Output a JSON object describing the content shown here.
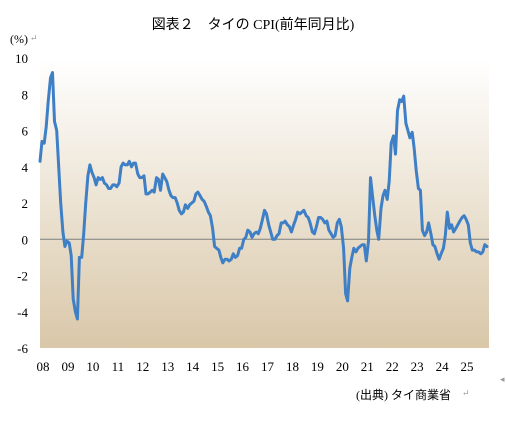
{
  "title": "図表２　タイの CPI(前年同月比)",
  "unit_label": "(%)",
  "source": "(出典) タイ商業省",
  "chart_data": {
    "type": "line",
    "title": "図表２　タイの CPI(前年同月比)",
    "ylabel": "(%)",
    "xlabel": "",
    "ylim": [
      -6,
      10
    ],
    "yticks": [
      10,
      8,
      6,
      4,
      2,
      0,
      -2,
      -4,
      -6
    ],
    "xlim": [
      2008,
      2026
    ],
    "xtick_labels": [
      "08",
      "09",
      "10",
      "11",
      "12",
      "13",
      "14",
      "15",
      "16",
      "17",
      "18",
      "19",
      "20",
      "21",
      "22",
      "23",
      "24",
      "25"
    ],
    "grid": false,
    "plot_background": "gradient-white-to-tan",
    "series": [
      {
        "name": "",
        "color": "#3f7fc6",
        "points": [
          [
            2008.0,
            4.3
          ],
          [
            2008.08,
            5.4
          ],
          [
            2008.17,
            5.3
          ],
          [
            2008.25,
            6.2
          ],
          [
            2008.33,
            7.6
          ],
          [
            2008.42,
            8.9
          ],
          [
            2008.5,
            9.2
          ],
          [
            2008.58,
            6.5
          ],
          [
            2008.67,
            6.0
          ],
          [
            2008.75,
            4.0
          ],
          [
            2008.83,
            2.0
          ],
          [
            2008.92,
            0.4
          ],
          [
            2009.0,
            -0.4
          ],
          [
            2009.08,
            -0.1
          ],
          [
            2009.17,
            -0.2
          ],
          [
            2009.25,
            -0.9
          ],
          [
            2009.33,
            -3.3
          ],
          [
            2009.42,
            -4.0
          ],
          [
            2009.5,
            -4.4
          ],
          [
            2009.58,
            -1.0
          ],
          [
            2009.67,
            -1.0
          ],
          [
            2009.75,
            0.3
          ],
          [
            2009.83,
            1.9
          ],
          [
            2009.92,
            3.5
          ],
          [
            2010.0,
            4.1
          ],
          [
            2010.08,
            3.7
          ],
          [
            2010.17,
            3.4
          ],
          [
            2010.25,
            3.0
          ],
          [
            2010.33,
            3.4
          ],
          [
            2010.42,
            3.3
          ],
          [
            2010.5,
            3.4
          ],
          [
            2010.58,
            3.1
          ],
          [
            2010.67,
            3.0
          ],
          [
            2010.75,
            2.8
          ],
          [
            2010.83,
            2.8
          ],
          [
            2010.92,
            3.0
          ],
          [
            2011.0,
            3.0
          ],
          [
            2011.08,
            2.9
          ],
          [
            2011.17,
            3.1
          ],
          [
            2011.25,
            4.0
          ],
          [
            2011.33,
            4.2
          ],
          [
            2011.42,
            4.1
          ],
          [
            2011.5,
            4.1
          ],
          [
            2011.58,
            4.3
          ],
          [
            2011.67,
            4.0
          ],
          [
            2011.75,
            4.2
          ],
          [
            2011.83,
            4.2
          ],
          [
            2011.92,
            3.6
          ],
          [
            2012.0,
            3.4
          ],
          [
            2012.08,
            3.4
          ],
          [
            2012.17,
            3.5
          ],
          [
            2012.25,
            2.5
          ],
          [
            2012.33,
            2.5
          ],
          [
            2012.42,
            2.6
          ],
          [
            2012.5,
            2.7
          ],
          [
            2012.58,
            2.6
          ],
          [
            2012.67,
            3.4
          ],
          [
            2012.75,
            3.3
          ],
          [
            2012.83,
            2.7
          ],
          [
            2012.92,
            3.6
          ],
          [
            2013.0,
            3.4
          ],
          [
            2013.08,
            3.2
          ],
          [
            2013.17,
            2.7
          ],
          [
            2013.25,
            2.4
          ],
          [
            2013.33,
            2.3
          ],
          [
            2013.42,
            2.3
          ],
          [
            2013.5,
            2.0
          ],
          [
            2013.58,
            1.6
          ],
          [
            2013.67,
            1.4
          ],
          [
            2013.75,
            1.5
          ],
          [
            2013.83,
            1.9
          ],
          [
            2013.92,
            1.7
          ],
          [
            2014.0,
            1.9
          ],
          [
            2014.08,
            2.0
          ],
          [
            2014.17,
            2.1
          ],
          [
            2014.25,
            2.5
          ],
          [
            2014.33,
            2.6
          ],
          [
            2014.42,
            2.4
          ],
          [
            2014.5,
            2.2
          ],
          [
            2014.58,
            2.1
          ],
          [
            2014.67,
            1.8
          ],
          [
            2014.75,
            1.5
          ],
          [
            2014.83,
            1.3
          ],
          [
            2014.92,
            0.6
          ],
          [
            2015.0,
            -0.4
          ],
          [
            2015.08,
            -0.5
          ],
          [
            2015.17,
            -0.6
          ],
          [
            2015.25,
            -1.0
          ],
          [
            2015.33,
            -1.3
          ],
          [
            2015.42,
            -1.1
          ],
          [
            2015.5,
            -1.1
          ],
          [
            2015.58,
            -1.2
          ],
          [
            2015.67,
            -1.1
          ],
          [
            2015.75,
            -0.8
          ],
          [
            2015.83,
            -1.0
          ],
          [
            2015.92,
            -0.9
          ],
          [
            2016.0,
            -0.5
          ],
          [
            2016.08,
            -0.5
          ],
          [
            2016.17,
            0.0
          ],
          [
            2016.25,
            0.1
          ],
          [
            2016.33,
            0.5
          ],
          [
            2016.42,
            0.4
          ],
          [
            2016.5,
            0.1
          ],
          [
            2016.58,
            0.3
          ],
          [
            2016.67,
            0.4
          ],
          [
            2016.75,
            0.3
          ],
          [
            2016.83,
            0.6
          ],
          [
            2016.92,
            1.1
          ],
          [
            2017.0,
            1.6
          ],
          [
            2017.08,
            1.4
          ],
          [
            2017.17,
            0.8
          ],
          [
            2017.25,
            0.4
          ],
          [
            2017.33,
            0.0
          ],
          [
            2017.42,
            0.0
          ],
          [
            2017.5,
            0.2
          ],
          [
            2017.58,
            0.3
          ],
          [
            2017.67,
            0.9
          ],
          [
            2017.75,
            0.9
          ],
          [
            2017.83,
            1.0
          ],
          [
            2017.92,
            0.8
          ],
          [
            2018.0,
            0.7
          ],
          [
            2018.08,
            0.4
          ],
          [
            2018.17,
            0.8
          ],
          [
            2018.25,
            1.1
          ],
          [
            2018.33,
            1.5
          ],
          [
            2018.42,
            1.4
          ],
          [
            2018.5,
            1.5
          ],
          [
            2018.58,
            1.6
          ],
          [
            2018.67,
            1.3
          ],
          [
            2018.75,
            1.2
          ],
          [
            2018.83,
            0.9
          ],
          [
            2018.92,
            0.4
          ],
          [
            2019.0,
            0.3
          ],
          [
            2019.08,
            0.7
          ],
          [
            2019.17,
            1.2
          ],
          [
            2019.25,
            1.2
          ],
          [
            2019.33,
            1.1
          ],
          [
            2019.42,
            0.9
          ],
          [
            2019.5,
            1.0
          ],
          [
            2019.58,
            0.5
          ],
          [
            2019.67,
            0.3
          ],
          [
            2019.75,
            0.1
          ],
          [
            2019.83,
            0.2
          ],
          [
            2019.92,
            0.9
          ],
          [
            2020.0,
            1.1
          ],
          [
            2020.08,
            0.7
          ],
          [
            2020.17,
            -0.5
          ],
          [
            2020.25,
            -3.0
          ],
          [
            2020.33,
            -3.4
          ],
          [
            2020.42,
            -1.6
          ],
          [
            2020.5,
            -1.0
          ],
          [
            2020.58,
            -0.5
          ],
          [
            2020.67,
            -0.7
          ],
          [
            2020.75,
            -0.5
          ],
          [
            2020.83,
            -0.4
          ],
          [
            2020.92,
            -0.3
          ],
          [
            2021.0,
            -0.3
          ],
          [
            2021.08,
            -1.2
          ],
          [
            2021.17,
            -0.1
          ],
          [
            2021.25,
            3.4
          ],
          [
            2021.33,
            2.4
          ],
          [
            2021.42,
            1.3
          ],
          [
            2021.5,
            0.5
          ],
          [
            2021.58,
            0.0
          ],
          [
            2021.67,
            1.7
          ],
          [
            2021.75,
            2.4
          ],
          [
            2021.83,
            2.7
          ],
          [
            2021.92,
            2.2
          ],
          [
            2022.0,
            3.2
          ],
          [
            2022.08,
            5.3
          ],
          [
            2022.17,
            5.7
          ],
          [
            2022.25,
            4.7
          ],
          [
            2022.33,
            7.1
          ],
          [
            2022.42,
            7.7
          ],
          [
            2022.5,
            7.6
          ],
          [
            2022.58,
            7.9
          ],
          [
            2022.67,
            6.4
          ],
          [
            2022.75,
            6.0
          ],
          [
            2022.83,
            5.6
          ],
          [
            2022.92,
            5.9
          ],
          [
            2023.0,
            5.0
          ],
          [
            2023.08,
            3.8
          ],
          [
            2023.17,
            2.8
          ],
          [
            2023.25,
            2.7
          ],
          [
            2023.33,
            0.5
          ],
          [
            2023.42,
            0.2
          ],
          [
            2023.5,
            0.4
          ],
          [
            2023.58,
            0.9
          ],
          [
            2023.67,
            0.3
          ],
          [
            2023.75,
            -0.3
          ],
          [
            2023.83,
            -0.4
          ],
          [
            2023.92,
            -0.8
          ],
          [
            2024.0,
            -1.1
          ],
          [
            2024.08,
            -0.8
          ],
          [
            2024.17,
            -0.5
          ],
          [
            2024.25,
            0.2
          ],
          [
            2024.33,
            1.5
          ],
          [
            2024.42,
            0.6
          ],
          [
            2024.5,
            0.8
          ],
          [
            2024.58,
            0.4
          ],
          [
            2024.67,
            0.6
          ],
          [
            2024.75,
            0.8
          ],
          [
            2024.83,
            1.0
          ],
          [
            2024.92,
            1.2
          ],
          [
            2025.0,
            1.3
          ],
          [
            2025.08,
            1.1
          ],
          [
            2025.17,
            0.8
          ],
          [
            2025.25,
            -0.2
          ],
          [
            2025.33,
            -0.6
          ],
          [
            2025.42,
            -0.6
          ],
          [
            2025.5,
            -0.7
          ],
          [
            2025.58,
            -0.7
          ],
          [
            2025.67,
            -0.8
          ],
          [
            2025.75,
            -0.7
          ],
          [
            2025.83,
            -0.3
          ],
          [
            2025.92,
            -0.4
          ]
        ]
      }
    ]
  }
}
